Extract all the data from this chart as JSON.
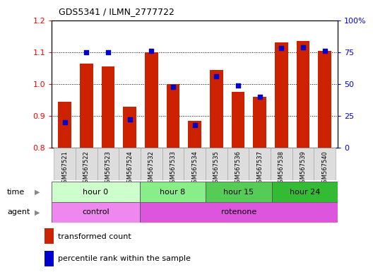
{
  "title": "GDS5341 / ILMN_2777722",
  "samples": [
    "GSM567521",
    "GSM567522",
    "GSM567523",
    "GSM567524",
    "GSM567532",
    "GSM567533",
    "GSM567534",
    "GSM567535",
    "GSM567536",
    "GSM567537",
    "GSM567538",
    "GSM567539",
    "GSM567540"
  ],
  "transformed_count": [
    0.945,
    1.065,
    1.055,
    0.93,
    1.1,
    1.0,
    0.885,
    1.045,
    0.975,
    0.96,
    1.13,
    1.135,
    1.105
  ],
  "percentile_rank": [
    20,
    75,
    75,
    22,
    76,
    48,
    18,
    56,
    49,
    40,
    78,
    79,
    76
  ],
  "ylim_left": [
    0.8,
    1.2
  ],
  "ylim_right": [
    0,
    100
  ],
  "yticks_left": [
    0.8,
    0.9,
    1.0,
    1.1,
    1.2
  ],
  "yticks_right": [
    0,
    25,
    50,
    75,
    100
  ],
  "ytick_labels_right": [
    "0",
    "25",
    "50",
    "75",
    "100%"
  ],
  "bar_color": "#cc2200",
  "dot_color": "#0000cc",
  "time_groups": [
    {
      "label": "hour 0",
      "start": 0,
      "end": 4,
      "color": "#ccffcc"
    },
    {
      "label": "hour 8",
      "start": 4,
      "end": 7,
      "color": "#88ee88"
    },
    {
      "label": "hour 15",
      "start": 7,
      "end": 10,
      "color": "#55cc55"
    },
    {
      "label": "hour 24",
      "start": 10,
      "end": 13,
      "color": "#33bb33"
    }
  ],
  "agent_groups": [
    {
      "label": "control",
      "start": 0,
      "end": 4,
      "color": "#ee88ee"
    },
    {
      "label": "rotenone",
      "start": 4,
      "end": 13,
      "color": "#dd55dd"
    }
  ],
  "legend_red": "transformed count",
  "legend_blue": "percentile rank within the sample",
  "bg_color": "#ffffff"
}
